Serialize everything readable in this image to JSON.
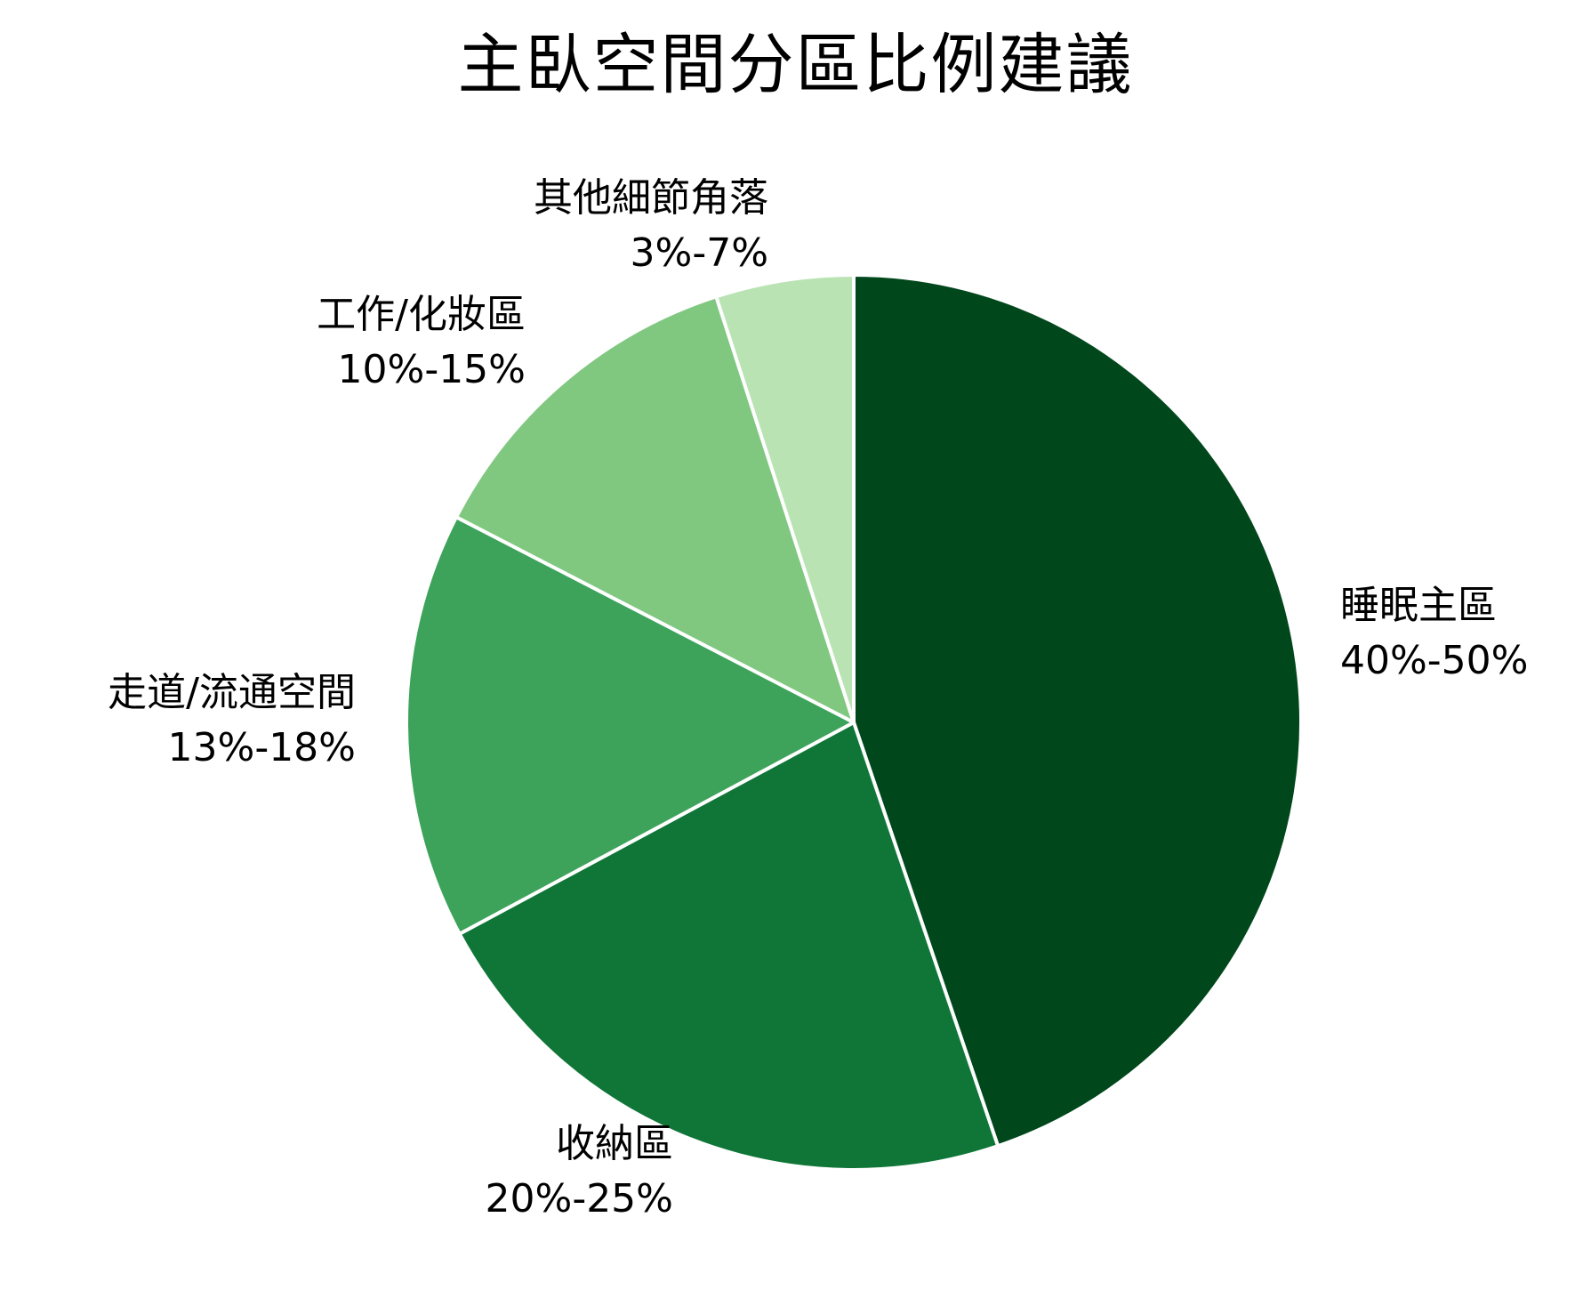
{
  "chart_data": {
    "type": "pie",
    "title": "主臥空間分區比例建議",
    "start_angle_deg": 0,
    "direction": "clockwise",
    "slice_border_color": "#ffffff",
    "slices": [
      {
        "label": "睡眠主區",
        "range": "40%-50%",
        "value": 45,
        "color": "#00471C"
      },
      {
        "label": "收納區",
        "range": "20%-25%",
        "value": 22.5,
        "color": "#0F7637"
      },
      {
        "label": "走道/流通空間",
        "range": "13%-18%",
        "value": 15.5,
        "color": "#3DA35A"
      },
      {
        "label": "工作/化妝區",
        "range": "10%-15%",
        "value": 12.5,
        "color": "#80C780"
      },
      {
        "label": "其他細節角落",
        "range": "3%-7%",
        "value": 5,
        "color": "#B9E3B3"
      }
    ]
  },
  "title": "主臥空間分區比例建議",
  "labels": {
    "sleep": {
      "name": "睡眠主區",
      "range": "40%-50%"
    },
    "storage": {
      "name": "收納區",
      "range": "20%-25%"
    },
    "corridor": {
      "name": "走道/流通空間",
      "range": "13%-18%"
    },
    "work": {
      "name": "工作/化妝區",
      "range": "10%-15%"
    },
    "other": {
      "name": "其他細節角落",
      "range": "3%-7%"
    }
  }
}
